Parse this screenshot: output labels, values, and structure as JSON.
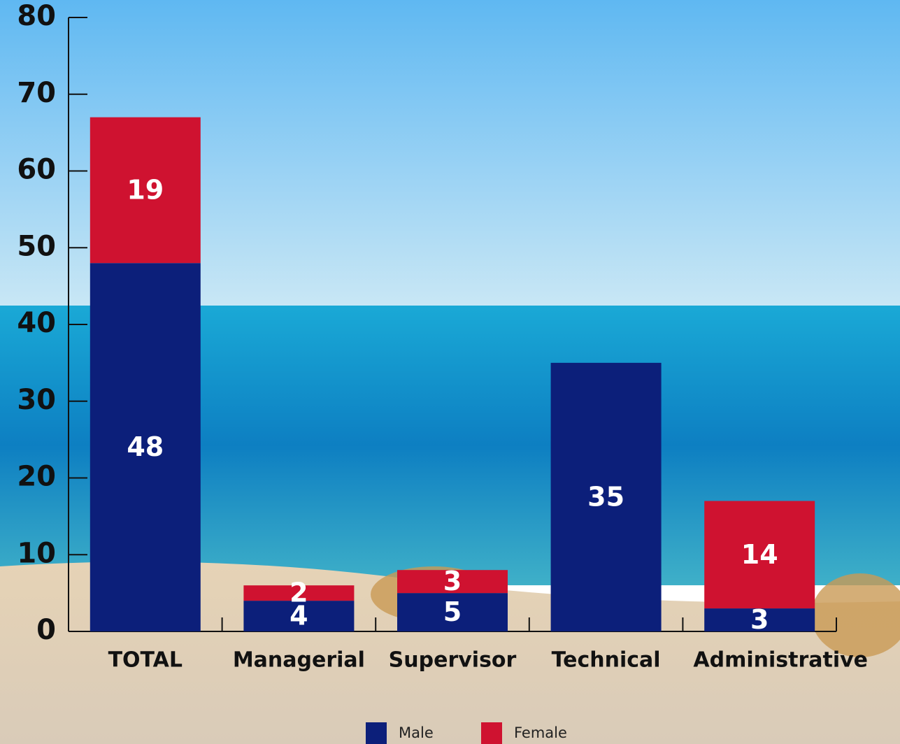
{
  "chart_data": {
    "type": "stacked_bar",
    "categories": [
      "TOTAL",
      "Managerial",
      "Supervisor",
      "Technical",
      "Administrative"
    ],
    "series": [
      {
        "name": "Male",
        "color": "#0c1f7a",
        "values": [
          48,
          4,
          5,
          35,
          3
        ]
      },
      {
        "name": "Female",
        "color": "#cf1230",
        "values": [
          19,
          2,
          3,
          null,
          14
        ]
      }
    ],
    "ylim": [
      0,
      80
    ],
    "yticks": [
      0,
      10,
      20,
      30,
      40,
      50,
      60,
      70,
      80
    ],
    "legend": "bottom"
  }
}
